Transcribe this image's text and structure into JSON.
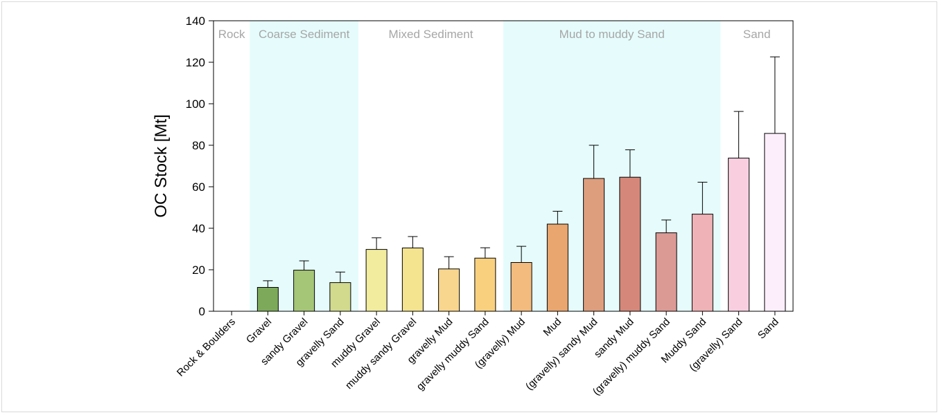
{
  "chart_data": {
    "type": "bar",
    "title": "",
    "xlabel": "",
    "ylabel": "OC Stock [Mt]",
    "ylim": [
      0,
      140
    ],
    "yticks": [
      0,
      20,
      40,
      60,
      80,
      100,
      120,
      140
    ],
    "grid": false,
    "legend": "none",
    "categories": [
      "Rock & Boulders",
      "Gravel",
      "sandy Gravel",
      "gravelly Sand",
      "muddy Gravel",
      "muddy sandy Gravel",
      "gravelly Mud",
      "gravelly muddy Sand",
      "(gravelly) Mud",
      "Mud",
      "(gravelly) sandy Mud",
      "sandy Mud",
      "(gravelly) muddy Sand",
      "Muddy Sand",
      "(gravelly) Sand",
      "Sand"
    ],
    "values": [
      0,
      11.5,
      19.8,
      13.8,
      29.8,
      30.5,
      20.4,
      25.6,
      23.5,
      42,
      64,
      64.6,
      37.8,
      46.8,
      73.8,
      85.7
    ],
    "error_upper": [
      0,
      14.7,
      24.3,
      18.9,
      35.4,
      36,
      26.3,
      30.6,
      31.3,
      48.2,
      80,
      77.8,
      44,
      62.2,
      96.3,
      122.6
    ],
    "bar_colors": [
      "#ffffff",
      "#7daa5a",
      "#a6c677",
      "#d2da8e",
      "#f1ec9e",
      "#f4e38f",
      "#f8d68d",
      "#f9d17e",
      "#f3bb7e",
      "#e9a66f",
      "#dd9e7e",
      "#d5887a",
      "#dc9a95",
      "#efb2b6",
      "#f9cfe0",
      "#fdeefb"
    ],
    "regions": [
      {
        "label": "Rock",
        "from": 0,
        "to": 0,
        "shaded": false
      },
      {
        "label": "Coarse Sediment",
        "from": 1,
        "to": 3,
        "shaded": true
      },
      {
        "label": "Mixed Sediment",
        "from": 4,
        "to": 7,
        "shaded": false
      },
      {
        "label": "Mud to muddy Sand",
        "from": 8,
        "to": 13,
        "shaded": true
      },
      {
        "label": "Sand",
        "from": 14,
        "to": 15,
        "shaded": false
      }
    ],
    "region_shade_color": "#e6fcfc"
  }
}
